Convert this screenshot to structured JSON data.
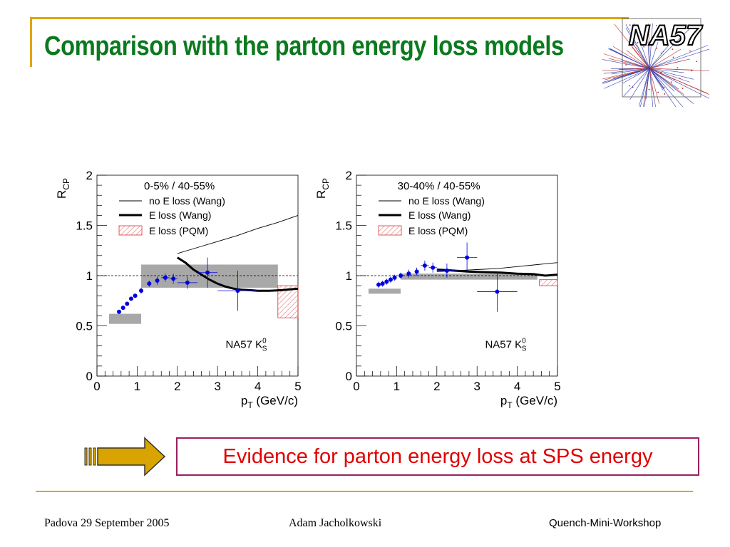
{
  "slide": {
    "title": "Comparison with the parton energy loss models",
    "logo_text": "NA57",
    "conclusion": "Evidence for parton energy loss at SPS energy",
    "footer": {
      "left": "Padova 29 September 2005",
      "center": "Adam Jacholkowski",
      "right": "Quench-Mini-Workshop"
    }
  },
  "colors": {
    "title": "#0B7A1E",
    "accent_line": "#E0A400",
    "conclusion_text": "#E00000",
    "conclusion_border": "#9B1F60",
    "arrow_fill": "#D9A400",
    "data_points": "#0000E0",
    "pqm_band": "#E03030",
    "syst_band": "#A8A8A8"
  },
  "chart_data": [
    {
      "type": "scatter",
      "panel_label": "0-5% / 40-55%",
      "xlabel": "p_T (GeV/c)",
      "ylabel": "R_CP",
      "xlim": [
        0,
        5
      ],
      "ylim": [
        0,
        2
      ],
      "x_ticks": [
        "0",
        "1",
        "2",
        "3",
        "4",
        "5"
      ],
      "y_ticks": [
        "0",
        "0.5",
        "1",
        "1.5",
        "2"
      ],
      "reference_line": 1,
      "annotation": "NA57 K",
      "annotation_sup": "0",
      "annotation_sub": "S",
      "legend": [
        {
          "label": "no E loss (Wang)",
          "style": "thin"
        },
        {
          "label": "E loss (Wang)",
          "style": "thick"
        },
        {
          "label": "E loss (PQM)",
          "style": "hatched"
        }
      ],
      "series": [
        {
          "name": "NA57 K0S",
          "points": [
            {
              "x": 0.55,
              "y": 0.64,
              "ey": 0.02,
              "ex": 0
            },
            {
              "x": 0.65,
              "y": 0.68,
              "ey": 0.02,
              "ex": 0
            },
            {
              "x": 0.75,
              "y": 0.72,
              "ey": 0.02,
              "ex": 0
            },
            {
              "x": 0.85,
              "y": 0.77,
              "ey": 0.02,
              "ex": 0
            },
            {
              "x": 0.95,
              "y": 0.8,
              "ey": 0.02,
              "ex": 0
            },
            {
              "x": 1.1,
              "y": 0.85,
              "ey": 0.03,
              "ex": 0
            },
            {
              "x": 1.3,
              "y": 0.92,
              "ey": 0.03,
              "ex": 0.05
            },
            {
              "x": 1.5,
              "y": 0.95,
              "ey": 0.04,
              "ex": 0.05
            },
            {
              "x": 1.7,
              "y": 0.98,
              "ey": 0.04,
              "ex": 0.1
            },
            {
              "x": 1.9,
              "y": 0.97,
              "ey": 0.05,
              "ex": 0.1
            },
            {
              "x": 2.25,
              "y": 0.93,
              "ey": 0.06,
              "ex": 0.25
            },
            {
              "x": 2.75,
              "y": 1.03,
              "ey": 0.15,
              "ex": 0.25
            },
            {
              "x": 3.5,
              "y": 0.85,
              "ey": 0.2,
              "ex": 0.5
            }
          ]
        }
      ],
      "no_eloss_wang": [
        [
          2.0,
          1.22
        ],
        [
          2.5,
          1.28
        ],
        [
          3.0,
          1.34
        ],
        [
          3.5,
          1.4
        ],
        [
          4.0,
          1.47
        ],
        [
          4.5,
          1.53
        ],
        [
          5.0,
          1.6
        ]
      ],
      "eloss_wang": [
        [
          2.0,
          1.18
        ],
        [
          2.2,
          1.13
        ],
        [
          2.4,
          1.06
        ],
        [
          2.6,
          1.01
        ],
        [
          2.8,
          0.96
        ],
        [
          3.0,
          0.92
        ],
        [
          3.2,
          0.89
        ],
        [
          3.4,
          0.87
        ],
        [
          3.6,
          0.86
        ],
        [
          3.8,
          0.855
        ],
        [
          4.0,
          0.85
        ],
        [
          4.3,
          0.85
        ],
        [
          4.6,
          0.855
        ],
        [
          5.0,
          0.87
        ]
      ],
      "pqm_band": {
        "x": [
          4.5,
          5.0
        ],
        "y": [
          0.58,
          0.9
        ]
      },
      "syst_bands": [
        {
          "x": [
            0.3,
            1.1
          ],
          "y": [
            0.52,
            0.62
          ]
        },
        {
          "x": [
            1.1,
            4.5
          ],
          "y": [
            0.88,
            1.11
          ]
        }
      ]
    },
    {
      "type": "scatter",
      "panel_label": "30-40% / 40-55%",
      "xlabel": "p_T (GeV/c)",
      "ylabel": "R_CP",
      "xlim": [
        0,
        5
      ],
      "ylim": [
        0,
        2
      ],
      "x_ticks": [
        "0",
        "1",
        "2",
        "3",
        "4",
        "5"
      ],
      "y_ticks": [
        "0",
        "0.5",
        "1",
        "1.5",
        "2"
      ],
      "reference_line": 1,
      "annotation": "NA57 K",
      "annotation_sup": "0",
      "annotation_sub": "S",
      "legend": [
        {
          "label": "no E loss (Wang)",
          "style": "thin"
        },
        {
          "label": "E loss (Wang)",
          "style": "thick"
        },
        {
          "label": "E loss (PQM)",
          "style": "hatched"
        }
      ],
      "series": [
        {
          "name": "NA57 K0S",
          "points": [
            {
              "x": 0.55,
              "y": 0.91,
              "ey": 0.03,
              "ex": 0
            },
            {
              "x": 0.65,
              "y": 0.92,
              "ey": 0.03,
              "ex": 0
            },
            {
              "x": 0.75,
              "y": 0.94,
              "ey": 0.03,
              "ex": 0
            },
            {
              "x": 0.85,
              "y": 0.96,
              "ey": 0.03,
              "ex": 0
            },
            {
              "x": 0.95,
              "y": 0.98,
              "ey": 0.03,
              "ex": 0
            },
            {
              "x": 1.1,
              "y": 1.0,
              "ey": 0.03,
              "ex": 0
            },
            {
              "x": 1.3,
              "y": 1.02,
              "ey": 0.04,
              "ex": 0.05
            },
            {
              "x": 1.5,
              "y": 1.04,
              "ey": 0.04,
              "ex": 0.05
            },
            {
              "x": 1.7,
              "y": 1.1,
              "ey": 0.05,
              "ex": 0.1
            },
            {
              "x": 1.9,
              "y": 1.08,
              "ey": 0.05,
              "ex": 0.1
            },
            {
              "x": 2.25,
              "y": 1.05,
              "ey": 0.07,
              "ex": 0.25
            },
            {
              "x": 2.75,
              "y": 1.18,
              "ey": 0.15,
              "ex": 0.25
            },
            {
              "x": 3.5,
              "y": 0.84,
              "ey": 0.2,
              "ex": 0.5
            }
          ]
        }
      ],
      "no_eloss_wang": [
        [
          2.0,
          1.04
        ],
        [
          2.5,
          1.05
        ],
        [
          3.0,
          1.06
        ],
        [
          3.5,
          1.07
        ],
        [
          4.0,
          1.09
        ],
        [
          4.5,
          1.11
        ],
        [
          5.0,
          1.13
        ]
      ],
      "eloss_wang": [
        [
          2.0,
          1.06
        ],
        [
          2.4,
          1.05
        ],
        [
          2.8,
          1.04
        ],
        [
          3.2,
          1.035
        ],
        [
          3.6,
          1.03
        ],
        [
          4.0,
          1.02
        ],
        [
          4.4,
          1.015
        ],
        [
          4.7,
          1.0
        ],
        [
          5.0,
          1.01
        ]
      ],
      "pqm_band": {
        "x": [
          4.55,
          5.0
        ],
        "y": [
          0.9,
          0.96
        ]
      },
      "syst_bands": [
        {
          "x": [
            0.3,
            1.1
          ],
          "y": [
            0.82,
            0.87
          ]
        },
        {
          "x": [
            1.1,
            4.5
          ],
          "y": [
            0.96,
            1.02
          ]
        }
      ]
    }
  ]
}
